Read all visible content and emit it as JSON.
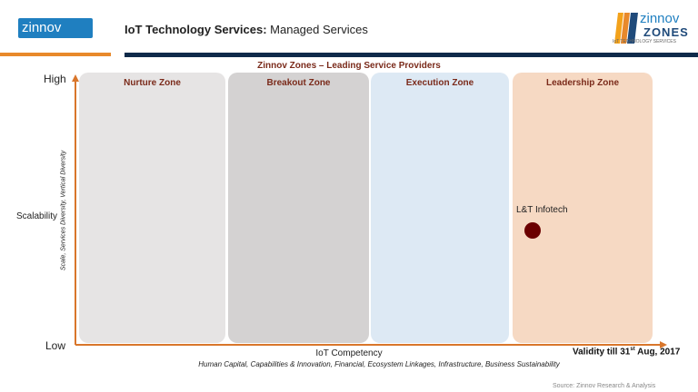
{
  "header": {
    "logo": "zinnov",
    "title_bold": "IoT Technology Services:",
    "title_rest": "Managed Services",
    "zones_logo": {
      "brand": "zinnov",
      "product": "ZONES",
      "tagline": "IoT TECHNOLOGY SERVICES"
    }
  },
  "chart": {
    "heading": "Zinnov  Zones  – Leading  Service  Providers",
    "zones": [
      {
        "label": "Nurture Zone",
        "color": "#e6e4e4"
      },
      {
        "label": "Breakout Zone",
        "color": "#d4d2d2"
      },
      {
        "label": "Execution  Zone",
        "color": "#dde9f4"
      },
      {
        "label": "Leadership  Zone",
        "color": "#f6d9c3"
      }
    ],
    "y_high": "High",
    "y_low": "Low",
    "y_label": "Scalability",
    "y_sub": "Scale, Services Diversity,  Vertical Diversity",
    "x_label": "IoT Competency",
    "x_sub": "Human Capital,  Capabilities & Innovation,  Financial,  Ecosystem Linkages,  Infrastructure,  Business Sustainability",
    "points": [
      {
        "label": "L&T Infotech",
        "zone": "Leadership  Zone",
        "color": "#6b0000"
      }
    ],
    "axis_color": "#d9762b"
  },
  "footer": {
    "validity_pre": "Validity till 31",
    "validity_sup": "st",
    "validity_post": " Aug, 2017",
    "source": "Source: Zinnov Research & Analysis"
  }
}
